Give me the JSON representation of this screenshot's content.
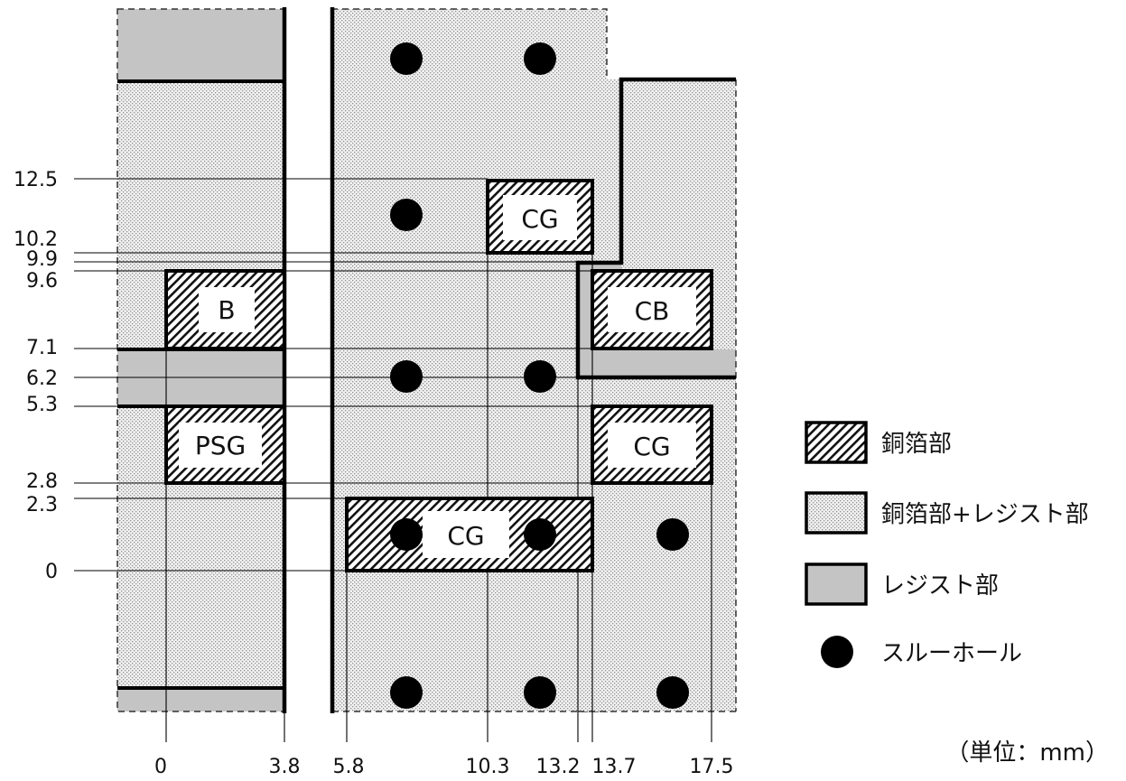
{
  "diagram": {
    "y_ticks": [
      "12.5",
      "10.2",
      "9.9",
      "9.6",
      "7.1",
      "6.2",
      "5.3",
      "2.8",
      "2.3",
      "0"
    ],
    "x_ticks": [
      "0",
      "3.8",
      "5.8",
      "10.3",
      "13.2",
      "13.7",
      "17.5"
    ],
    "pads": {
      "b": "B",
      "psg": "PSG",
      "cg_top": "CG",
      "cb": "CB",
      "cg_right": "CG",
      "cg_bottom": "CG"
    }
  },
  "legend": {
    "copper": "銅箔部",
    "copper_resist": "銅箔部+レジスト部",
    "resist": "レジスト部",
    "through_hole": "スルーホール"
  },
  "unit_note": "（単位：mm）",
  "colors": {
    "resist_gray": "#c4c4c4",
    "dot_fill": "#f1f1f1",
    "dot_color": "#8f8f8f",
    "outline": "#000000"
  }
}
